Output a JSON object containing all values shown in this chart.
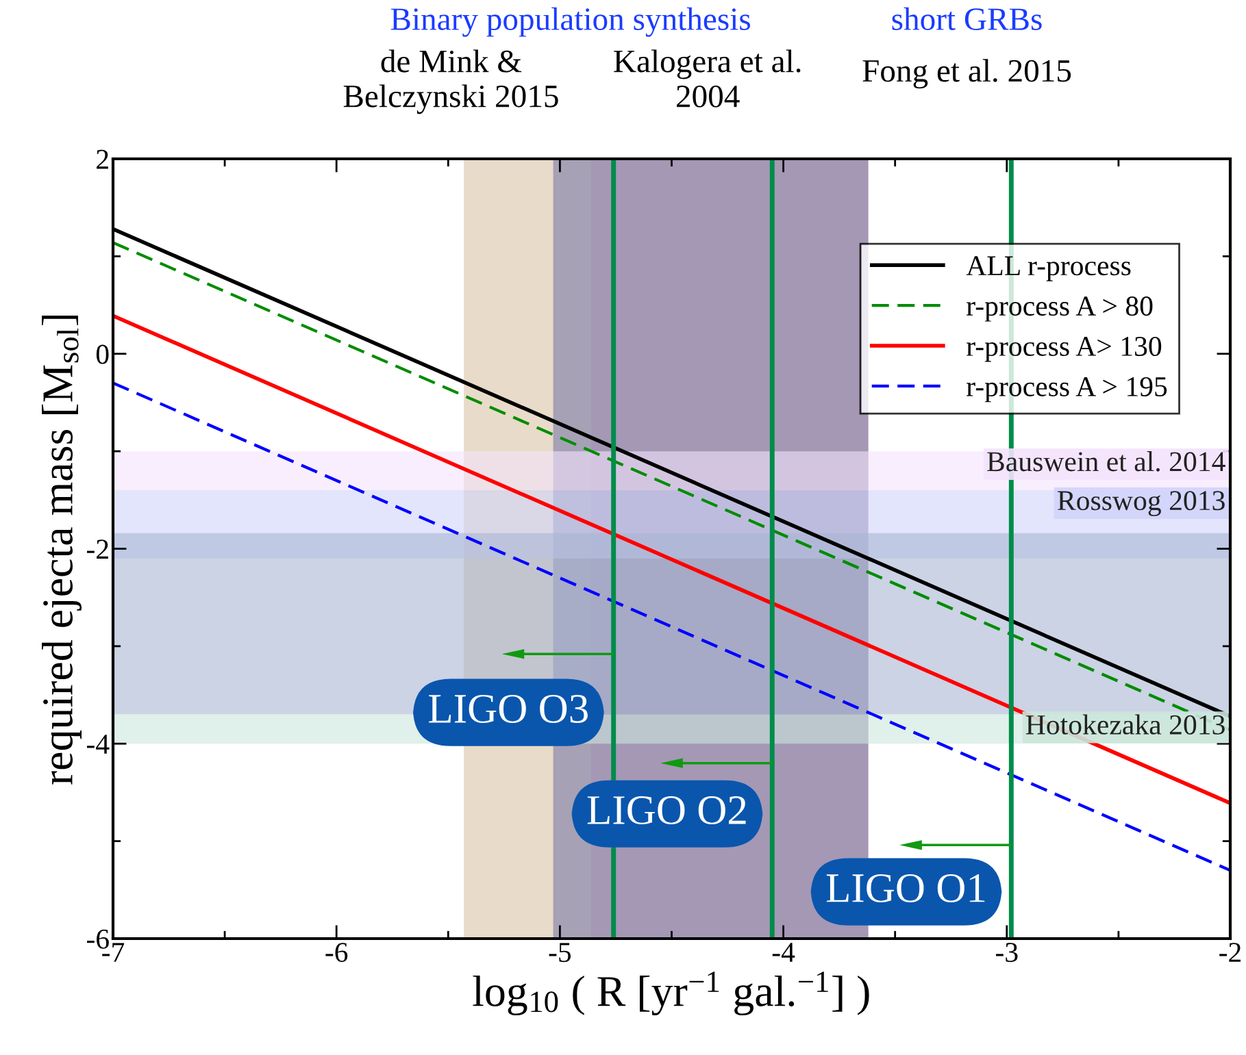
{
  "chart_data": {
    "type": "line",
    "xlabel": "log$_{10}$ ( R [yr$^{−1}$ gal.$^{−1}$] )",
    "ylabel": "required ejecta mass [M$_{sol}$]",
    "x": [
      -7,
      -2
    ],
    "series": [
      {
        "name": "ALL r-process",
        "color": "#000000",
        "values": [
          1.28,
          -3.72
        ],
        "line_style": "solid"
      },
      {
        "name": "r-process A > 80",
        "color": "#008c00",
        "values": [
          1.14,
          -3.86
        ],
        "line_style": "dashed"
      },
      {
        "name": "r-process A> 130",
        "color": "#ff0000",
        "values": [
          0.39,
          -4.61
        ],
        "line_style": "solid"
      },
      {
        "name": "r-process A > 195",
        "color": "#0000ff",
        "values": [
          -0.3,
          -5.3
        ],
        "line_style": "dashed"
      }
    ],
    "xlim": [
      -7,
      -2
    ],
    "ylim": [
      -6,
      2
    ],
    "xticks": [
      -7,
      {
        "value": -6.5,
        "label": null
      },
      -6,
      {
        "value": -5.5,
        "label": null
      },
      -5,
      {
        "value": -4.5,
        "label": null
      },
      -4,
      {
        "value": -3.5,
        "label": null
      },
      -3,
      {
        "value": -2.5,
        "label": null
      },
      -2
    ],
    "yticks": [
      -6,
      {
        "value": -5,
        "label": null
      },
      -4,
      {
        "value": -3,
        "label": null
      },
      -2,
      {
        "value": -1,
        "label": null
      },
      0,
      {
        "value": 1,
        "label": null
      },
      2
    ],
    "bands": [
      {
        "axis": "x",
        "from": -5.43,
        "to": -3.62,
        "color": "#d9c3a5"
      },
      {
        "axis": "x",
        "from": -4.86,
        "to": -3.62,
        "color": "#e0b8c8"
      },
      {
        "axis": "x",
        "from": -5.03,
        "to": -3.62,
        "color": "#7a7aa8"
      },
      {
        "axis": "y",
        "from": -1.4,
        "to": -1.0,
        "label": "Bauswein et al. 2014",
        "color": "#f3e3fd"
      },
      {
        "axis": "y",
        "from": -2.1,
        "to": -1.4,
        "label": "Rosswog 2013",
        "color": "#d0d3fa"
      },
      {
        "axis": "y",
        "from": -3.7,
        "to": -1.84,
        "color": "#a8b6d2"
      },
      {
        "axis": "y",
        "from": -4.0,
        "to": -3.7,
        "label": "Hotokezaka 2013",
        "color": "#cbe6dc"
      }
    ],
    "ref_lines": [
      {
        "axis": "x",
        "value": -4.76,
        "label": "LIGO O3",
        "color": "#008c4a"
      },
      {
        "axis": "x",
        "value": -4.05,
        "label": "LIGO O2",
        "color": "#008c4a"
      },
      {
        "axis": "x",
        "value": -2.98,
        "label": "LIGO O1",
        "color": "#008c4a"
      }
    ],
    "annotations": [
      "Binary population synthesis",
      "short GRBs",
      "de Mink &\nBelczynski 2015",
      "Kalogera et al.\n2004",
      "Fong et al. 2015"
    ],
    "legend": "top right",
    "grid": false
  }
}
